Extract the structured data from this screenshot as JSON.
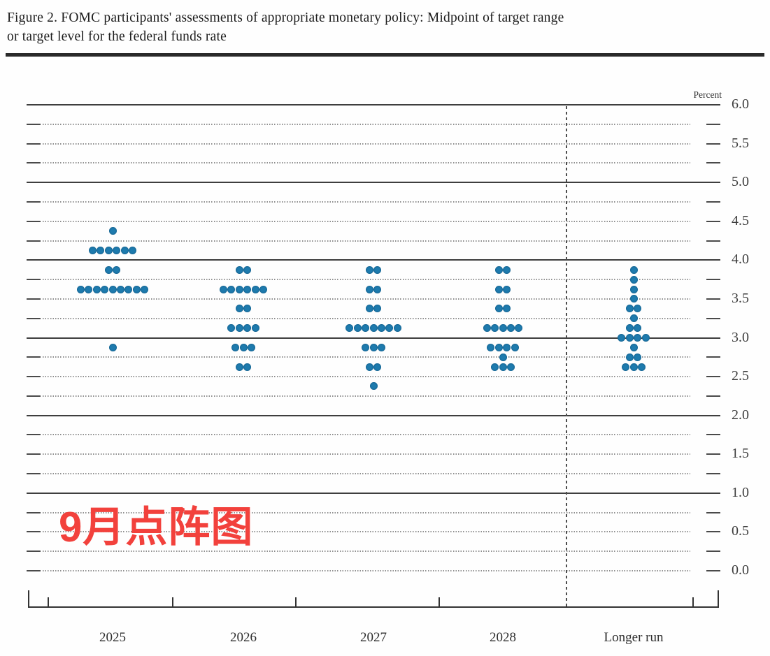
{
  "figure": {
    "title_line1": "Figure 2. FOMC participants' assessments of appropriate monetary policy: Midpoint of target range",
    "title_line2": "or target level for the federal funds rate"
  },
  "annotation": {
    "text": "9月点阵图",
    "color": "#f2413c"
  },
  "chart_data": {
    "type": "scatter",
    "subtype": "fomc-dot-plot",
    "title": "FOMC participants' assessments of appropriate monetary policy: Midpoint of target range or target level for the federal funds rate",
    "ylabel": "Percent",
    "xlabel": "",
    "grid": "on",
    "y_axis": {
      "min": 0.0,
      "max": 6.0,
      "tick_step": 0.5,
      "grid_step": 0.25,
      "solid_line_step": 1.0,
      "tick_labels": [
        "6.0",
        "5.5",
        "5.0",
        "4.5",
        "4.0",
        "3.5",
        "3.0",
        "2.5",
        "2.0",
        "1.5",
        "1.0",
        "0.5",
        "0.0"
      ]
    },
    "categories": [
      "2025",
      "2026",
      "2027",
      "2028",
      "Longer run"
    ],
    "separator": {
      "style": "dashed-vertical",
      "between": [
        "2028",
        "Longer run"
      ]
    },
    "dot_color": "#1e7bae",
    "series": [
      {
        "category": "2025",
        "dots": [
          {
            "rate": 4.375,
            "count": 1
          },
          {
            "rate": 4.125,
            "count": 6
          },
          {
            "rate": 3.875,
            "count": 2
          },
          {
            "rate": 3.625,
            "count": 9
          },
          {
            "rate": 2.875,
            "count": 1
          }
        ]
      },
      {
        "category": "2026",
        "dots": [
          {
            "rate": 3.875,
            "count": 2
          },
          {
            "rate": 3.625,
            "count": 6
          },
          {
            "rate": 3.375,
            "count": 2
          },
          {
            "rate": 3.125,
            "count": 4
          },
          {
            "rate": 2.875,
            "count": 3
          },
          {
            "rate": 2.625,
            "count": 2
          }
        ]
      },
      {
        "category": "2027",
        "dots": [
          {
            "rate": 3.875,
            "count": 2
          },
          {
            "rate": 3.625,
            "count": 2
          },
          {
            "rate": 3.375,
            "count": 2
          },
          {
            "rate": 3.125,
            "count": 7
          },
          {
            "rate": 2.875,
            "count": 3
          },
          {
            "rate": 2.625,
            "count": 2
          },
          {
            "rate": 2.375,
            "count": 1
          }
        ]
      },
      {
        "category": "2028",
        "dots": [
          {
            "rate": 3.875,
            "count": 2
          },
          {
            "rate": 3.625,
            "count": 2
          },
          {
            "rate": 3.375,
            "count": 2
          },
          {
            "rate": 3.125,
            "count": 5
          },
          {
            "rate": 2.875,
            "count": 4
          },
          {
            "rate": 2.75,
            "count": 1
          },
          {
            "rate": 2.625,
            "count": 3
          }
        ]
      },
      {
        "category": "Longer run",
        "dots": [
          {
            "rate": 3.875,
            "count": 1
          },
          {
            "rate": 3.75,
            "count": 1
          },
          {
            "rate": 3.625,
            "count": 1
          },
          {
            "rate": 3.5,
            "count": 1
          },
          {
            "rate": 3.375,
            "count": 2
          },
          {
            "rate": 3.25,
            "count": 1
          },
          {
            "rate": 3.125,
            "count": 2
          },
          {
            "rate": 3.0,
            "count": 4
          },
          {
            "rate": 2.875,
            "count": 1
          },
          {
            "rate": 2.75,
            "count": 2
          },
          {
            "rate": 2.625,
            "count": 3
          }
        ]
      }
    ]
  }
}
